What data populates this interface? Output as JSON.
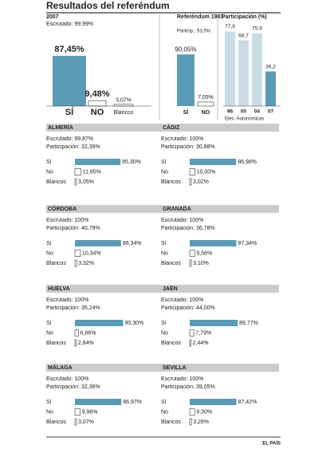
{
  "title": "Resultados del referéndum",
  "bar_color": "#5b9bb5",
  "light_color": "#c9dce6",
  "header_color": "#c9ccc9",
  "summary_2007": {
    "year": "2007",
    "escrutado": "Escrutado: 99,99%",
    "categories": [
      "SÍ",
      "NO",
      "Blancos"
    ],
    "values": [
      87.45,
      9.48,
      3.07
    ],
    "value_labels": [
      "87,45%",
      "9,48%",
      "3,07%"
    ]
  },
  "summary_1981": {
    "title": "Referéndum 1981",
    "particip": "Particip.: 53,5%",
    "categories": [
      "SÍ",
      "NO"
    ],
    "values": [
      90.05,
      7.05
    ],
    "value_labels": [
      "90,05%",
      "7,05%"
    ]
  },
  "participation": {
    "title": "Participación (%)",
    "categories": [
      "96",
      "00",
      "04",
      "07"
    ],
    "values": [
      77.9,
      68.7,
      75.9,
      36.2
    ],
    "value_labels": [
      "77,9",
      "68,7",
      "75,9",
      "36,2"
    ],
    "xlabel": "Elec. Autonómicas"
  },
  "provinces": [
    {
      "name": "ALMERÍA",
      "escrutado": "Escrutado: 99,87%",
      "participacion": "Participación: 32,39%",
      "categories": [
        "Sí",
        "No",
        "Blancos"
      ],
      "values": [
        85.3,
        11.65,
        3.05
      ],
      "value_labels": [
        "85,30%",
        "11,65%",
        "3,05%"
      ]
    },
    {
      "name": "CÁDIZ",
      "escrutado": "Escrutado: 100%",
      "participacion": "Participación: 30,88%",
      "categories": [
        "Sí",
        "No",
        "Blancos"
      ],
      "values": [
        86.98,
        10.0,
        3.02
      ],
      "value_labels": [
        "86,98%",
        "10,00%",
        "3,02%"
      ]
    },
    {
      "name": "CÓRDOBA",
      "escrutado": "Escrutado: 100%",
      "participacion": "Participación: 40,79%",
      "categories": [
        "Sí",
        "No",
        "Blancos"
      ],
      "values": [
        86.34,
        10.34,
        3.32
      ],
      "value_labels": [
        "86,34%",
        "10,34%",
        "3,32%"
      ]
    },
    {
      "name": "GRANADA",
      "escrutado": "Escrutado: 100%",
      "participacion": "Participación: 36,78%",
      "categories": [
        "Sí",
        "No",
        "Blancos"
      ],
      "values": [
        87.34,
        9.56,
        3.1
      ],
      "value_labels": [
        "87,34%",
        "9,56%",
        "3,10%"
      ]
    },
    {
      "name": "HUELVA",
      "escrutado": "Escrutado: 100%",
      "participacion": "Participación: 35,24%",
      "categories": [
        "Sí",
        "No",
        "Blancos"
      ],
      "values": [
        90.3,
        6.86,
        2.84
      ],
      "value_labels": [
        "90,30%",
        "6,86%",
        "2,84%"
      ]
    },
    {
      "name": "JAÉN",
      "escrutado": "Escrutado: 100%",
      "participacion": "Participación: 44,00%",
      "categories": [
        "Sí",
        "No",
        "Blancos"
      ],
      "values": [
        89.77,
        7.79,
        2.44
      ],
      "value_labels": [
        "89,77%",
        "7,79%",
        "2,44%"
      ]
    },
    {
      "name": "MÁLAGA",
      "escrutado": "Escrutado: 100%",
      "participacion": "Participación: 32,36%",
      "categories": [
        "Sí",
        "No",
        "Blancos"
      ],
      "values": [
        86.97,
        9.96,
        3.07
      ],
      "value_labels": [
        "86,97%",
        "9,96%",
        "3,07%"
      ]
    },
    {
      "name": "SEVILLA",
      "escrutado": "Escrutado: 100%",
      "participacion": "Participación: 39,05%",
      "categories": [
        "Sí",
        "No",
        "Blancos"
      ],
      "values": [
        87.42,
        9.3,
        3.28
      ],
      "value_labels": [
        "87,42%",
        "9,30%",
        "3,28%"
      ]
    }
  ],
  "source": "EL PAÍS"
}
